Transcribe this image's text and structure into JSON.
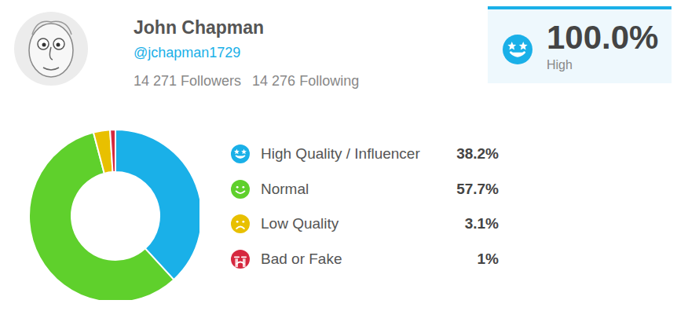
{
  "profile": {
    "name": "John Chapman",
    "handle": "@jchapman1729",
    "followers": "14 271 Followers",
    "following": "14 276 Following"
  },
  "score": {
    "label": "100.0%",
    "rating": "High"
  },
  "chart_data": {
    "type": "pie",
    "categories": [
      "High Quality / Influencer",
      "Normal",
      "Low Quality",
      "Bad or Fake"
    ],
    "values": [
      38.2,
      57.7,
      3.1,
      1
    ],
    "value_labels": [
      "38.2%",
      "57.7%",
      "3.1%",
      "1%"
    ],
    "colors": [
      "#1ab0e8",
      "#5fd02c",
      "#e8c000",
      "#d6283f"
    ]
  }
}
